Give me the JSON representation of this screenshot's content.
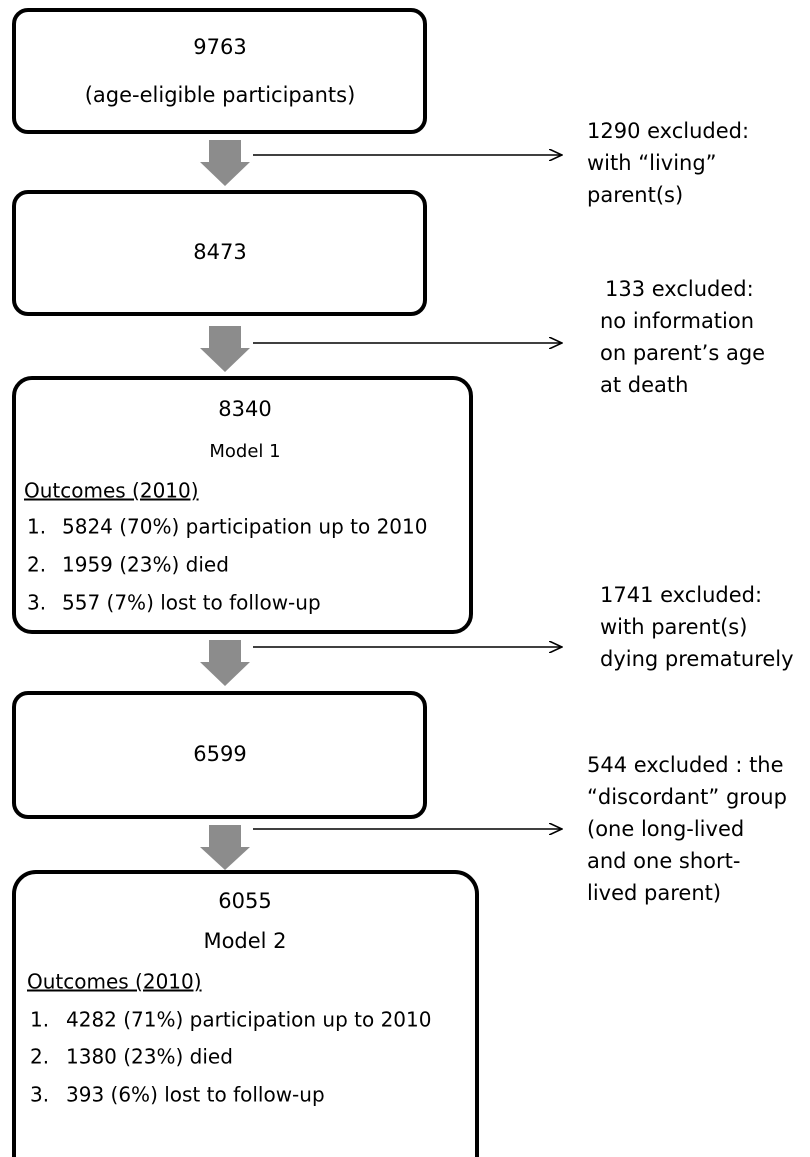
{
  "nodes": [
    {
      "lines": [
        "9763",
        "(age-eligible participants)"
      ]
    },
    {
      "lines": [
        "8473"
      ]
    },
    {
      "number": "8340",
      "model": "Model 1",
      "outcomes_heading": "Outcomes (2010)",
      "outcomes": [
        {
          "num": "1.",
          "text": "5824 (70%) participation up to 2010"
        },
        {
          "num": "2.",
          "text": "1959 (23%) died"
        },
        {
          "num": "3.",
          "text": "557 (7%) lost to follow-up"
        }
      ]
    },
    {
      "lines": [
        "6599"
      ]
    },
    {
      "number": "6055",
      "model": "Model 2",
      "outcomes_heading": "Outcomes (2010)",
      "outcomes": [
        {
          "num": "1.",
          "text": "4282 (71%) participation up to 2010"
        },
        {
          "num": "2.",
          "text": "1380 (23%) died"
        },
        {
          "num": "3.",
          "text": "393 (6%) lost to follow-up"
        }
      ]
    }
  ],
  "exclusions": [
    {
      "lines": [
        "1290 excluded:",
        "with “living”",
        "parent(s)"
      ]
    },
    {
      "lines": [
        "133 excluded:",
        "no information",
        "on parent’s age",
        "at death"
      ]
    },
    {
      "lines": [
        "1741 excluded:",
        "with parent(s)",
        "dying prematurely"
      ]
    },
    {
      "lines": [
        "544 excluded : the",
        "“discordant” group",
        "(one long-lived",
        "and one short-",
        "lived parent)"
      ]
    }
  ]
}
